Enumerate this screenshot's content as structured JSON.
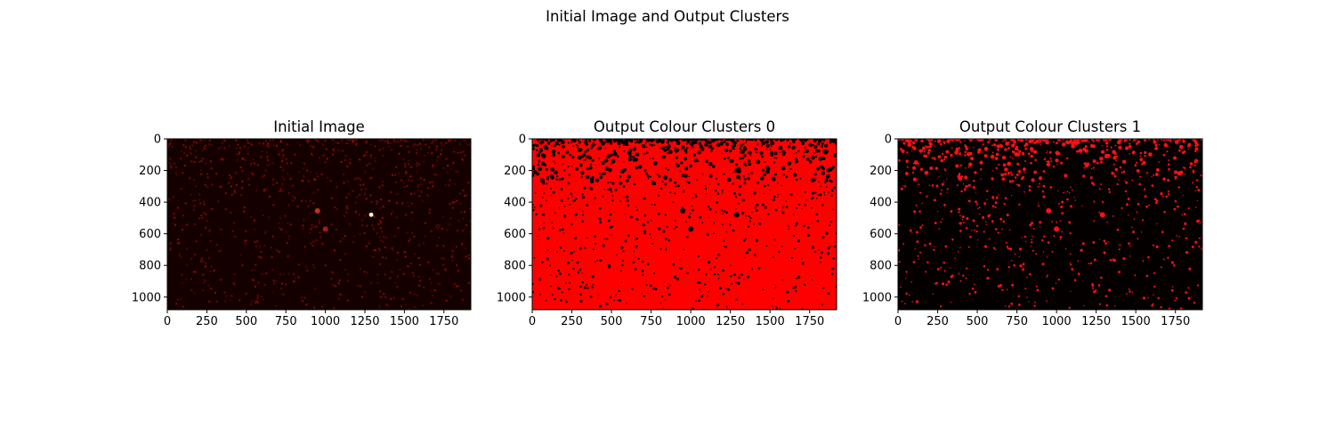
{
  "figure_title": "Initial Image and Output Clusters",
  "chart_data": [
    {
      "type": "heatmap",
      "title": "Initial Image",
      "colormap": "hot",
      "background_color": "#150000",
      "xlim": [
        0,
        1920
      ],
      "ylim": [
        1080,
        0
      ],
      "xticks": [
        0,
        250,
        500,
        750,
        1000,
        1250,
        1500,
        1750
      ],
      "xtick_labels": [
        "0",
        "250",
        "500",
        "750",
        "1000",
        "1250",
        "1500",
        "1750"
      ],
      "yticks": [
        0,
        200,
        400,
        600,
        800,
        1000
      ],
      "ytick_labels": [
        "0",
        "200",
        "400",
        "600",
        "800",
        "1000"
      ],
      "highlights": [
        {
          "x": 1290,
          "y": 480,
          "color": "#ffffc0"
        },
        {
          "x": 950,
          "y": 455,
          "color": "#c03020"
        },
        {
          "x": 1000,
          "y": 570,
          "color": "#a02010"
        }
      ]
    },
    {
      "type": "heatmap",
      "title": "Output Colour Clusters 0",
      "background_color": "#ff0000",
      "speckle_color": "#000000",
      "xlim": [
        0,
        1920
      ],
      "ylim": [
        1080,
        0
      ],
      "xticks": [
        0,
        250,
        500,
        750,
        1000,
        1250,
        1500,
        1750
      ],
      "xtick_labels": [
        "0",
        "250",
        "500",
        "750",
        "1000",
        "1250",
        "1500",
        "1750"
      ],
      "yticks": [
        0,
        200,
        400,
        600,
        800,
        1000
      ],
      "ytick_labels": [
        "0",
        "200",
        "400",
        "600",
        "800",
        "1000"
      ],
      "highlights": [
        {
          "x": 950,
          "y": 455,
          "color": "#000000"
        },
        {
          "x": 1290,
          "y": 480,
          "color": "#000000"
        },
        {
          "x": 1000,
          "y": 570,
          "color": "#000000"
        }
      ]
    },
    {
      "type": "heatmap",
      "title": "Output Colour Clusters 1",
      "background_color": "#040000",
      "speckle_color": "#ff1010",
      "xlim": [
        0,
        1920
      ],
      "ylim": [
        1080,
        0
      ],
      "xticks": [
        0,
        250,
        500,
        750,
        1000,
        1250,
        1500,
        1750
      ],
      "xtick_labels": [
        "0",
        "250",
        "500",
        "750",
        "1000",
        "1250",
        "1500",
        "1750"
      ],
      "yticks": [
        0,
        200,
        400,
        600,
        800,
        1000
      ],
      "ytick_labels": [
        "0",
        "200",
        "400",
        "600",
        "800",
        "1000"
      ],
      "highlights": [
        {
          "x": 950,
          "y": 455,
          "color": "#ff1010"
        },
        {
          "x": 1290,
          "y": 480,
          "color": "#ff1010"
        },
        {
          "x": 1000,
          "y": 570,
          "color": "#ff1010"
        }
      ]
    }
  ]
}
